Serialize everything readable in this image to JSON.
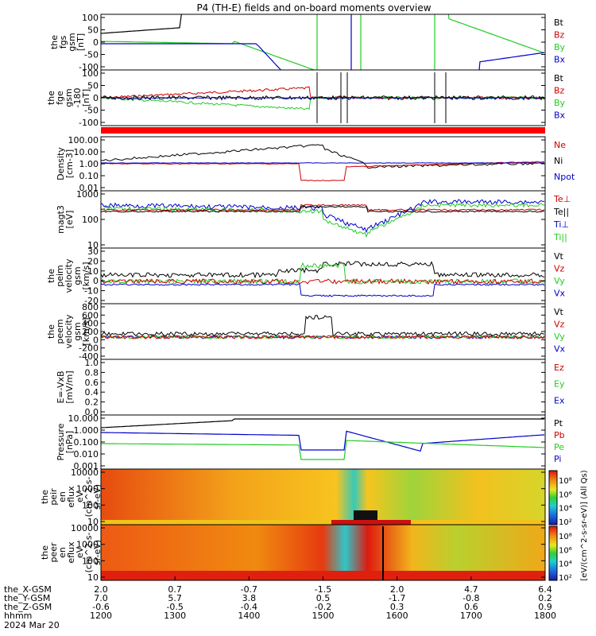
{
  "title": "P4 (TH-E) fields and on-board moments overview",
  "colors": {
    "black": "#000000",
    "red": "#cc0000",
    "green": "#22cc22",
    "blue": "#0000cc",
    "gray": "#555555"
  },
  "chart_data": {
    "type": "line",
    "x_ticks": [
      {
        "hhmm": "1200",
        "x_gsm": "2.0",
        "y_gsm": "7.0",
        "z_gsm": "-0.6"
      },
      {
        "hhmm": "1300",
        "x_gsm": "0.7",
        "y_gsm": "5.7",
        "z_gsm": "-0.5"
      },
      {
        "hhmm": "1400",
        "x_gsm": "-0.7",
        "y_gsm": "3.8",
        "z_gsm": "-0.4"
      },
      {
        "hhmm": "1500",
        "x_gsm": "-1.5",
        "y_gsm": "0.5",
        "z_gsm": "-0.2"
      },
      {
        "hhmm": "1600",
        "x_gsm": "2.0",
        "y_gsm": "-1.7",
        "z_gsm": "0.3"
      },
      {
        "hhmm": "1700",
        "x_gsm": "4.7",
        "y_gsm": "-0.8",
        "z_gsm": "0.6"
      },
      {
        "hhmm": "1800",
        "x_gsm": "6.4",
        "y_gsm": "0.2",
        "z_gsm": "0.9"
      }
    ],
    "x_row_labels": [
      "the_X-GSM",
      "the_Y-GSM",
      "the_Z-GSM",
      "hhmm",
      "2024 Mar 20"
    ],
    "panels": [
      {
        "id": "fgs",
        "ylabel": [
          "the",
          "fgs",
          "gsm",
          "[nT]"
        ],
        "ticks": [
          "100",
          "50",
          "0",
          "-50",
          "-100"
        ],
        "legend": [
          {
            "name": "Bt",
            "color": "black"
          },
          {
            "name": "Bz",
            "color": "red"
          },
          {
            "name": "By",
            "color": "green"
          },
          {
            "name": "Bx",
            "color": "blue"
          }
        ]
      },
      {
        "id": "fge",
        "ylabel": [
          "the",
          "fge",
          "gsm",
          "-180",
          "[nT]"
        ],
        "ticks": [
          "100",
          "50",
          "0",
          "-50",
          "-100"
        ],
        "legend": [
          {
            "name": "Bt",
            "color": "black"
          },
          {
            "name": "Bz",
            "color": "red"
          },
          {
            "name": "By",
            "color": "green"
          },
          {
            "name": "Bx",
            "color": "blue"
          }
        ]
      },
      {
        "id": "density",
        "ylabel": [
          "Density",
          "[cm-3]"
        ],
        "ticks": [
          "100.00",
          "10.00",
          "1.00",
          "0.10",
          "0.01"
        ],
        "legend": [
          {
            "name": "Ne",
            "color": "red"
          },
          {
            "name": "Ni",
            "color": "black"
          },
          {
            "name": "Npot",
            "color": "blue"
          }
        ]
      },
      {
        "id": "temp",
        "ylabel": [
          "magt3",
          "[eV]"
        ],
        "ticks": [
          "1000",
          "100",
          "10"
        ],
        "legend": [
          {
            "name": "Te⊥",
            "color": "red"
          },
          {
            "name": "Te||",
            "color": "black"
          },
          {
            "name": "Ti⊥",
            "color": "blue"
          },
          {
            "name": "Ti||",
            "color": "green"
          }
        ]
      },
      {
        "id": "peim",
        "ylabel": [
          "the",
          "peim",
          "velocity",
          "gsm",
          "[km/s]"
        ],
        "ticks": [
          "30",
          "20",
          "10",
          "0",
          "-10",
          "-20"
        ],
        "legend": [
          {
            "name": "Vt",
            "color": "black"
          },
          {
            "name": "Vz",
            "color": "red"
          },
          {
            "name": "Vy",
            "color": "green"
          },
          {
            "name": "Vx",
            "color": "blue"
          }
        ]
      },
      {
        "id": "peem",
        "ylabel": [
          "the",
          "peem",
          "velocity",
          "gsm",
          "[km/s]"
        ],
        "ticks": [
          "800",
          "600",
          "400",
          "200",
          "0",
          "-200",
          "-400"
        ],
        "legend": [
          {
            "name": "Vt",
            "color": "black"
          },
          {
            "name": "Vz",
            "color": "red"
          },
          {
            "name": "Vy",
            "color": "green"
          },
          {
            "name": "Vx",
            "color": "blue"
          }
        ]
      },
      {
        "id": "efield",
        "ylabel": [
          "E=-VxB",
          "[mV/m]"
        ],
        "ticks": [
          "1.0",
          "0.8",
          "0.6",
          "0.4",
          "0.2",
          "0.0"
        ],
        "legend": [
          {
            "name": "Ez",
            "color": "red"
          },
          {
            "name": "Ey",
            "color": "green"
          },
          {
            "name": "Ex",
            "color": "blue"
          }
        ]
      },
      {
        "id": "pressure",
        "ylabel": [
          "Pressure",
          "[nPa]"
        ],
        "ticks": [
          "10.000",
          "1.000",
          "0.100",
          "0.010",
          "0.001"
        ],
        "legend": [
          {
            "name": "Pt",
            "color": "black"
          },
          {
            "name": "Pb",
            "color": "red"
          },
          {
            "name": "Pe",
            "color": "green"
          },
          {
            "name": "Pi",
            "color": "blue"
          }
        ]
      },
      {
        "id": "peir",
        "ylabel": [
          "the",
          "peir",
          "en",
          "eflux",
          "eV",
          "(cm^2-s-",
          "sr-eV)"
        ],
        "ticks": [
          "10000",
          "1000",
          "100",
          "10"
        ],
        "legend": []
      },
      {
        "id": "peer",
        "ylabel": [
          "the",
          "peer",
          "en",
          "eflux",
          "eV",
          "(cm^2-s-",
          "sr-eV)"
        ],
        "ticks": [
          "10000",
          "1000",
          "100",
          "10"
        ],
        "legend": []
      }
    ],
    "colorbar": {
      "ticks": [
        "10⁸",
        "10⁶",
        "10⁴",
        "10²"
      ],
      "label": "[eV/(cm^2-s-sr-eV)] (All Qs)"
    }
  }
}
